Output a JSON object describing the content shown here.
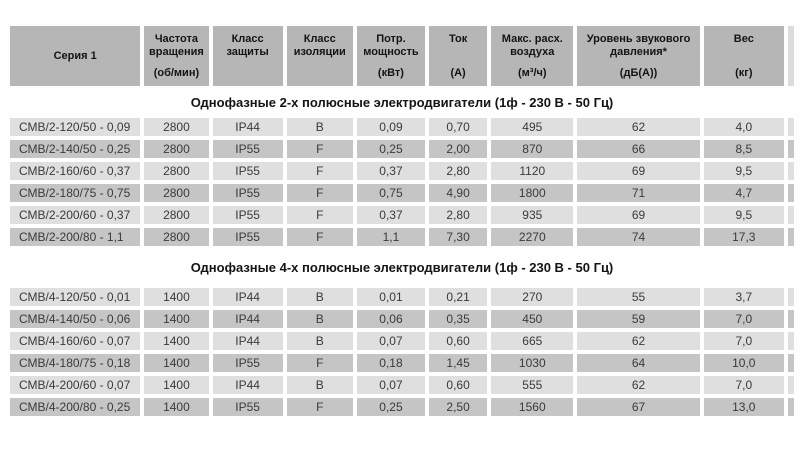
{
  "table": {
    "columns": [
      {
        "label": "Серия 1",
        "unit": ""
      },
      {
        "label": "Частота вращения",
        "unit": "(об/мин)"
      },
      {
        "label": "Класс защиты",
        "unit": ""
      },
      {
        "label": "Класс изоляции",
        "unit": ""
      },
      {
        "label": "Потр. мощность",
        "unit": "(кВт)"
      },
      {
        "label": "Ток",
        "unit": "(А)"
      },
      {
        "label": "Макс. расх. воздуха",
        "unit": "(м³/ч)"
      },
      {
        "label": "Уровень звукового давления*",
        "unit": "(дБ(А))"
      },
      {
        "label": "Вес",
        "unit": "(кг)"
      }
    ],
    "sections": [
      {
        "title": "Однофазные 2-х полюсные электродвигатели (1ф - 230 В - 50 Гц)",
        "rows": [
          [
            "СМВ/2-120/50 - 0,09",
            "2800",
            "IP44",
            "B",
            "0,09",
            "0,70",
            "495",
            "62",
            "4,0"
          ],
          [
            "СМВ/2-140/50 - 0,25",
            "2800",
            "IP55",
            "F",
            "0,25",
            "2,00",
            "870",
            "66",
            "8,5"
          ],
          [
            "СМВ/2-160/60 - 0,37",
            "2800",
            "IP55",
            "F",
            "0,37",
            "2,80",
            "1120",
            "69",
            "9,5"
          ],
          [
            "СМВ/2-180/75 - 0,75",
            "2800",
            "IP55",
            "F",
            "0,75",
            "4,90",
            "1800",
            "71",
            "4,7"
          ],
          [
            "СМВ/2-200/60 - 0,37",
            "2800",
            "IP55",
            "F",
            "0,37",
            "2,80",
            "935",
            "69",
            "9,5"
          ],
          [
            "СМВ/2-200/80 - 1,1",
            "2800",
            "IP55",
            "F",
            "1,1",
            "7,30",
            "2270",
            "74",
            "17,3"
          ]
        ]
      },
      {
        "title": "Однофазные 4-х полюсные электродвигатели (1ф - 230 В - 50 Гц)",
        "rows": [
          [
            "СМВ/4-120/50 - 0,01",
            "1400",
            "IP44",
            "B",
            "0,01",
            "0,21",
            "270",
            "55",
            "3,7"
          ],
          [
            "СМВ/4-140/50 - 0,06",
            "1400",
            "IP44",
            "B",
            "0,06",
            "0,35",
            "450",
            "59",
            "7,0"
          ],
          [
            "СМВ/4-160/60 - 0,07",
            "1400",
            "IP44",
            "B",
            "0,07",
            "0,60",
            "665",
            "62",
            "7,0"
          ],
          [
            "СМВ/4-180/75 - 0,18",
            "1400",
            "IP55",
            "F",
            "0,18",
            "1,45",
            "1030",
            "64",
            "10,0"
          ],
          [
            "СМВ/4-200/60 - 0,07",
            "1400",
            "IP44",
            "B",
            "0,07",
            "0,60",
            "555",
            "62",
            "7,0"
          ],
          [
            "СМВ/4-200/80 - 0,25",
            "1400",
            "IP55",
            "F",
            "0,25",
            "2,50",
            "1560",
            "67",
            "13,0"
          ]
        ]
      }
    ]
  },
  "colors": {
    "header_bg": "#b6b6b6",
    "row_light": "#dfdfdf",
    "row_dark": "#c5c5c5",
    "section_bg": "#fefefe",
    "data_text": "#3a3a3a",
    "header_text": "#141414"
  }
}
